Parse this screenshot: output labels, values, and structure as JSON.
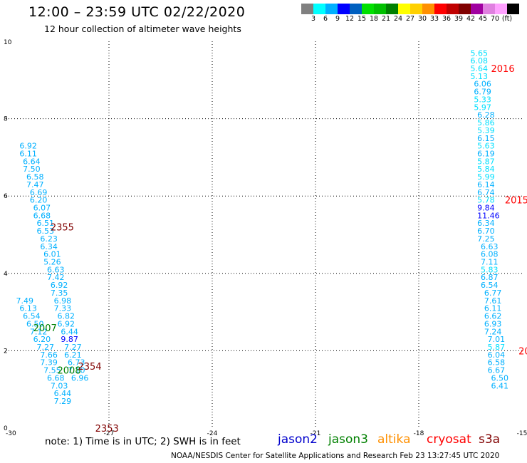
{
  "header": {
    "title": "12:00 – 23:59 UTC 02/22/2020",
    "subtitle": "12 hour collection of altimeter wave heights"
  },
  "scale": {
    "colors": [
      "#808080",
      "#00ffff",
      "#00b0ff",
      "#0000ff",
      "#0060c0",
      "#00e000",
      "#00c000",
      "#008000",
      "#ffff00",
      "#ffd000",
      "#ff9000",
      "#ff0000",
      "#c00000",
      "#800000",
      "#a000a0",
      "#e080e0",
      "#ffa0ff",
      "#000000"
    ],
    "labels": [
      "3",
      "6",
      "9",
      "12",
      "15",
      "18",
      "21",
      "24",
      "27",
      "30",
      "33",
      "36",
      "39",
      "42",
      "45",
      "70",
      "(ft)"
    ]
  },
  "chart_data": {
    "type": "scatter",
    "title": "12:00 – 23:59 UTC 02/22/2020",
    "subtitle": "12 hour collection of altimeter wave heights",
    "x_ticks": [
      "-30",
      "-27",
      "-24",
      "-21",
      "-18",
      "-15"
    ],
    "y_ticks": [
      "0",
      "2",
      "4",
      "6",
      "8",
      "10"
    ],
    "xlim": [
      -30,
      -15
    ],
    "ylim": [
      0,
      10
    ],
    "grid": true,
    "tracks": [
      {
        "name": "track-left",
        "points": [
          {
            "x": -29.6,
            "y": 7.3,
            "v": "6.92",
            "c": "#00b0ff"
          },
          {
            "x": -29.6,
            "y": 7.1,
            "v": "6.11",
            "c": "#00b0ff"
          },
          {
            "x": -29.5,
            "y": 6.9,
            "v": "6.64",
            "c": "#00b0ff"
          },
          {
            "x": -29.5,
            "y": 6.7,
            "v": "7.50",
            "c": "#00b0ff"
          },
          {
            "x": -29.4,
            "y": 6.5,
            "v": "6.58",
            "c": "#00b0ff"
          },
          {
            "x": -29.4,
            "y": 6.3,
            "v": "7.47",
            "c": "#00b0ff"
          },
          {
            "x": -29.3,
            "y": 6.1,
            "v": "6.69",
            "c": "#00b0ff"
          },
          {
            "x": -29.3,
            "y": 5.9,
            "v": "6.20",
            "c": "#00b0ff"
          },
          {
            "x": -29.2,
            "y": 5.7,
            "v": "6.07",
            "c": "#00b0ff"
          },
          {
            "x": -29.2,
            "y": 5.5,
            "v": "6.68",
            "c": "#00b0ff"
          },
          {
            "x": -29.1,
            "y": 5.3,
            "v": "6.51",
            "c": "#00b0ff"
          },
          {
            "x": -29.1,
            "y": 5.1,
            "v": "6.53",
            "c": "#00b0ff"
          },
          {
            "x": -29.0,
            "y": 4.9,
            "v": "6.23",
            "c": "#00b0ff"
          },
          {
            "x": -29.0,
            "y": 4.7,
            "v": "6.34",
            "c": "#00b0ff"
          },
          {
            "x": -28.9,
            "y": 4.5,
            "v": "6.01",
            "c": "#00b0ff"
          },
          {
            "x": -28.9,
            "y": 4.3,
            "v": "5.26",
            "c": "#00b0ff"
          },
          {
            "x": -28.8,
            "y": 4.1,
            "v": "6.63",
            "c": "#00b0ff"
          },
          {
            "x": -28.8,
            "y": 3.9,
            "v": "7.42",
            "c": "#00b0ff"
          },
          {
            "x": -28.7,
            "y": 3.7,
            "v": "6.92",
            "c": "#00b0ff"
          },
          {
            "x": -28.7,
            "y": 3.5,
            "v": "7.35",
            "c": "#00b0ff"
          },
          {
            "x": -28.6,
            "y": 3.3,
            "v": "6.98",
            "c": "#00b0ff"
          },
          {
            "x": -28.6,
            "y": 3.1,
            "v": "7.33",
            "c": "#00b0ff"
          },
          {
            "x": -28.5,
            "y": 2.9,
            "v": "6.82",
            "c": "#00b0ff"
          },
          {
            "x": -28.5,
            "y": 2.7,
            "v": "6.92",
            "c": "#00b0ff"
          },
          {
            "x": -28.4,
            "y": 2.5,
            "v": "6.44",
            "c": "#00b0ff"
          },
          {
            "x": -28.4,
            "y": 2.3,
            "v": "9.87",
            "c": "#0000ff"
          },
          {
            "x": -28.3,
            "y": 2.1,
            "v": "7.27",
            "c": "#00b0ff"
          },
          {
            "x": -28.3,
            "y": 1.9,
            "v": "6.21",
            "c": "#00b0ff"
          },
          {
            "x": -28.2,
            "y": 1.7,
            "v": "6.73",
            "c": "#00b0ff"
          },
          {
            "x": -28.2,
            "y": 1.5,
            "v": "7.10",
            "c": "#00b0ff"
          },
          {
            "x": -28.1,
            "y": 1.3,
            "v": "6.96",
            "c": "#00b0ff"
          }
        ]
      },
      {
        "name": "track-lower-left",
        "points": [
          {
            "x": -29.7,
            "y": 3.3,
            "v": "7.49",
            "c": "#00b0ff"
          },
          {
            "x": -29.6,
            "y": 3.1,
            "v": "6.13",
            "c": "#00b0ff"
          },
          {
            "x": -29.5,
            "y": 2.9,
            "v": "6.54",
            "c": "#00b0ff"
          },
          {
            "x": -29.4,
            "y": 2.7,
            "v": "6.50",
            "c": "#00b0ff"
          },
          {
            "x": -29.3,
            "y": 2.5,
            "v": "7.12",
            "c": "#00b0ff"
          },
          {
            "x": -29.2,
            "y": 2.3,
            "v": "6.20",
            "c": "#00b0ff"
          },
          {
            "x": -29.1,
            "y": 2.1,
            "v": "7.27",
            "c": "#00b0ff"
          },
          {
            "x": -29.0,
            "y": 1.9,
            "v": "7.66",
            "c": "#00b0ff"
          },
          {
            "x": -29.0,
            "y": 1.7,
            "v": "7.39",
            "c": "#00b0ff"
          },
          {
            "x": -28.9,
            "y": 1.5,
            "v": "7.55",
            "c": "#00b0ff"
          },
          {
            "x": -28.8,
            "y": 1.3,
            "v": "6.68",
            "c": "#00b0ff"
          },
          {
            "x": -28.7,
            "y": 1.1,
            "v": "7.03",
            "c": "#00b0ff"
          },
          {
            "x": -28.6,
            "y": 0.9,
            "v": "6.44",
            "c": "#00b0ff"
          },
          {
            "x": -28.6,
            "y": 0.7,
            "v": "7.29",
            "c": "#00b0ff"
          }
        ]
      },
      {
        "name": "track-right",
        "points": [
          {
            "x": -16.5,
            "y": 9.7,
            "v": "5.65",
            "c": "#00e0ff"
          },
          {
            "x": -16.5,
            "y": 9.5,
            "v": "6.08",
            "c": "#00e0ff"
          },
          {
            "x": -16.5,
            "y": 9.3,
            "v": "5.64",
            "c": "#00e0ff"
          },
          {
            "x": -16.5,
            "y": 9.1,
            "v": "5.13",
            "c": "#00e0ff"
          },
          {
            "x": -16.4,
            "y": 8.9,
            "v": "6.06",
            "c": "#00b0ff"
          },
          {
            "x": -16.4,
            "y": 8.7,
            "v": "6.79",
            "c": "#00b0ff"
          },
          {
            "x": -16.4,
            "y": 8.5,
            "v": "5.33",
            "c": "#00e0ff"
          },
          {
            "x": -16.4,
            "y": 8.3,
            "v": "5.97",
            "c": "#00e0ff"
          },
          {
            "x": -16.3,
            "y": 8.1,
            "v": "6.28",
            "c": "#00b0ff"
          },
          {
            "x": -16.3,
            "y": 7.9,
            "v": "5.86",
            "c": "#00e0ff"
          },
          {
            "x": -16.3,
            "y": 7.7,
            "v": "5.39",
            "c": "#00e0ff"
          },
          {
            "x": -16.3,
            "y": 7.5,
            "v": "6.15",
            "c": "#00b0ff"
          },
          {
            "x": -16.3,
            "y": 7.3,
            "v": "5.63",
            "c": "#00e0ff"
          },
          {
            "x": -16.3,
            "y": 7.1,
            "v": "6.19",
            "c": "#00b0ff"
          },
          {
            "x": -16.3,
            "y": 6.9,
            "v": "5.87",
            "c": "#00e0ff"
          },
          {
            "x": -16.3,
            "y": 6.7,
            "v": "5.84",
            "c": "#00e0ff"
          },
          {
            "x": -16.3,
            "y": 6.5,
            "v": "5.99",
            "c": "#00e0ff"
          },
          {
            "x": -16.3,
            "y": 6.3,
            "v": "6.14",
            "c": "#00b0ff"
          },
          {
            "x": -16.3,
            "y": 6.1,
            "v": "6.74",
            "c": "#00b0ff"
          },
          {
            "x": -16.3,
            "y": 5.9,
            "v": "5.78",
            "c": "#00e0ff"
          },
          {
            "x": -16.3,
            "y": 5.7,
            "v": "9.84",
            "c": "#0000ff"
          },
          {
            "x": -16.3,
            "y": 5.5,
            "v": "11.46",
            "c": "#0000ff"
          },
          {
            "x": -16.3,
            "y": 5.3,
            "v": "6.34",
            "c": "#00b0ff"
          },
          {
            "x": -16.3,
            "y": 5.1,
            "v": "6.70",
            "c": "#00b0ff"
          },
          {
            "x": -16.3,
            "y": 4.9,
            "v": "7.25",
            "c": "#00b0ff"
          },
          {
            "x": -16.2,
            "y": 4.7,
            "v": "6.63",
            "c": "#00b0ff"
          },
          {
            "x": -16.2,
            "y": 4.5,
            "v": "6.08",
            "c": "#00b0ff"
          },
          {
            "x": -16.2,
            "y": 4.3,
            "v": "7.11",
            "c": "#00b0ff"
          },
          {
            "x": -16.2,
            "y": 4.1,
            "v": "5.83",
            "c": "#00e0ff"
          },
          {
            "x": -16.2,
            "y": 3.9,
            "v": "6.87",
            "c": "#00b0ff"
          },
          {
            "x": -16.2,
            "y": 3.7,
            "v": "6.54",
            "c": "#00b0ff"
          },
          {
            "x": -16.1,
            "y": 3.5,
            "v": "6.77",
            "c": "#00b0ff"
          },
          {
            "x": -16.1,
            "y": 3.3,
            "v": "7.61",
            "c": "#00b0ff"
          },
          {
            "x": -16.1,
            "y": 3.1,
            "v": "6.11",
            "c": "#00b0ff"
          },
          {
            "x": -16.1,
            "y": 2.9,
            "v": "6.62",
            "c": "#00b0ff"
          },
          {
            "x": -16.1,
            "y": 2.7,
            "v": "6.93",
            "c": "#00b0ff"
          },
          {
            "x": -16.1,
            "y": 2.5,
            "v": "7.24",
            "c": "#00b0ff"
          },
          {
            "x": -16.0,
            "y": 2.3,
            "v": "7.01",
            "c": "#00b0ff"
          },
          {
            "x": -16.0,
            "y": 2.1,
            "v": "5.87",
            "c": "#00e0ff"
          },
          {
            "x": -16.0,
            "y": 1.9,
            "v": "6.04",
            "c": "#00b0ff"
          },
          {
            "x": -16.0,
            "y": 1.7,
            "v": "6.58",
            "c": "#00b0ff"
          },
          {
            "x": -16.0,
            "y": 1.5,
            "v": "6.67",
            "c": "#00b0ff"
          },
          {
            "x": -15.9,
            "y": 1.3,
            "v": "6.50",
            "c": "#00b0ff"
          },
          {
            "x": -15.9,
            "y": 1.1,
            "v": "6.41",
            "c": "#00b0ff"
          }
        ]
      }
    ],
    "time_labels": [
      {
        "x": -28.7,
        "y": 5.2,
        "text": "2355",
        "c": "#800000"
      },
      {
        "x": -29.2,
        "y": 2.6,
        "text": "2007",
        "c": "#008000"
      },
      {
        "x": -28.5,
        "y": 1.5,
        "text": "2008",
        "c": "#008000"
      },
      {
        "x": -27.9,
        "y": 1.6,
        "text": "2354",
        "c": "#800000"
      },
      {
        "x": -27.4,
        "y": 0.0,
        "text": "2353",
        "c": "#800000"
      },
      {
        "x": -15.9,
        "y": 9.3,
        "text": "2016",
        "c": "#ff0000"
      },
      {
        "x": -15.5,
        "y": 5.9,
        "text": "2015",
        "c": "#ff0000"
      },
      {
        "x": -15.1,
        "y": 2.0,
        "text": "20",
        "c": "#ff0000"
      }
    ],
    "legend": [
      {
        "name": "jason2",
        "color": "#0000cc"
      },
      {
        "name": "jason3",
        "color": "#008000"
      },
      {
        "name": "altika",
        "color": "#ff9000"
      },
      {
        "name": "cryosat",
        "color": "#ff0000"
      },
      {
        "name": "s3a",
        "color": "#800000"
      }
    ],
    "legend_position": "bottom"
  },
  "footer": {
    "note": "note:  1) Time is in UTC;  2) SWH is in feet",
    "credit": "NOAA/NESDIS Center for Satellite Applications and Research      Feb 23 13:27:45 UTC 2020"
  }
}
